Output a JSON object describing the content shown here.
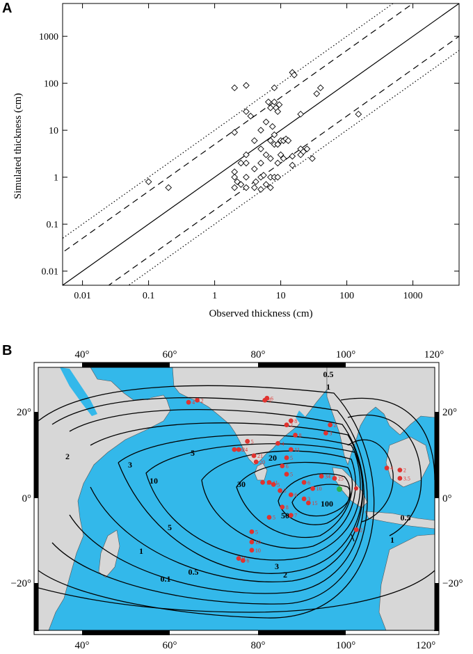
{
  "panel_a": {
    "letter": "A",
    "xlabel": "Observed thickness (cm)",
    "ylabel": "Simulated thickness (cm)",
    "x_ticks": [
      {
        "v": 0.01,
        "label": "0.01"
      },
      {
        "v": 0.1,
        "label": "0.1"
      },
      {
        "v": 1,
        "label": "1"
      },
      {
        "v": 10,
        "label": "10"
      },
      {
        "v": 100,
        "label": "100"
      },
      {
        "v": 1000,
        "label": "1000"
      }
    ],
    "y_ticks": [
      {
        "v": 0.01,
        "label": "0.01"
      },
      {
        "v": 0.1,
        "label": "0.1"
      },
      {
        "v": 1,
        "label": "1"
      },
      {
        "v": 10,
        "label": "10"
      },
      {
        "v": 100,
        "label": "100"
      },
      {
        "v": 1000,
        "label": "1000"
      }
    ]
  },
  "panel_b": {
    "letter": "B",
    "lon_labels": [
      "40°",
      "60°",
      "80°",
      "100°",
      "120°"
    ],
    "lat_labels": [
      "20°",
      "0°",
      "−20°"
    ],
    "lat_labels_right": [
      "20°",
      "0°",
      "−20°"
    ],
    "contour_labels": [
      "0.5",
      "1",
      "2",
      "3",
      "5",
      "10",
      "20",
      "30",
      "50",
      "100",
      "3",
      "2",
      "1",
      "0.5",
      "0.1",
      "5",
      "1",
      "0.5"
    ],
    "site_labels": [
      "4",
      "2",
      "5",
      "6",
      "0.1",
      "1",
      "5",
      "5",
      "4",
      "5",
      "5",
      "2",
      "3",
      "8",
      "11",
      "5",
      "4",
      "21",
      "19",
      "20",
      "18",
      "24",
      "5",
      "2",
      "3",
      "10",
      "11",
      "5",
      "6",
      "5",
      "6",
      "10",
      "5",
      "6",
      "3",
      "9",
      "10",
      "8",
      "5",
      "7",
      "15",
      "25",
      "34",
      "10",
      "15",
      "2",
      "9",
      "7",
      "8",
      "10",
      "5",
      "2",
      "4",
      "2",
      "3.5",
      "2",
      "2",
      "5",
      "10",
      "10",
      "9",
      "6",
      "6"
    ]
  },
  "chart_data": [
    {
      "type": "scatter",
      "title": "",
      "xlabel": "Observed thickness (cm)",
      "ylabel": "Simulated thickness (cm)",
      "xscale": "log",
      "yscale": "log",
      "xlim": [
        0.005,
        5000
      ],
      "ylim": [
        0.005,
        5000
      ],
      "grid": false,
      "lines": [
        {
          "style": "solid",
          "relation": "y = x"
        },
        {
          "style": "dashed",
          "relation": "y = 5x"
        },
        {
          "style": "dashed",
          "relation": "y = x/5"
        },
        {
          "style": "dotted",
          "relation": "y = 10x"
        },
        {
          "style": "dotted",
          "relation": "y = x/10"
        }
      ],
      "series": [
        {
          "marker": "open-diamond",
          "points": [
            [
              0.1,
              0.8
            ],
            [
              0.2,
              0.6
            ],
            [
              2,
              80
            ],
            [
              3,
              90
            ],
            [
              2,
              9
            ],
            [
              2,
              1.3
            ],
            [
              2,
              1
            ],
            [
              2,
              0.6
            ],
            [
              2.2,
              0.8
            ],
            [
              2.5,
              2
            ],
            [
              2.5,
              0.7
            ],
            [
              3,
              3
            ],
            [
              3,
              2
            ],
            [
              3,
              1
            ],
            [
              3,
              0.6
            ],
            [
              3,
              25
            ],
            [
              3.5,
              20
            ],
            [
              4,
              6
            ],
            [
              4,
              1.5
            ],
            [
              4,
              0.6
            ],
            [
              4.2,
              0.8
            ],
            [
              5,
              10
            ],
            [
              5,
              4
            ],
            [
              5,
              2
            ],
            [
              5,
              1
            ],
            [
              5,
              0.55
            ],
            [
              5.5,
              1.1
            ],
            [
              6,
              15
            ],
            [
              6,
              3
            ],
            [
              6,
              0.7
            ],
            [
              6.5,
              40
            ],
            [
              7,
              30
            ],
            [
              7,
              6
            ],
            [
              7,
              2.5
            ],
            [
              7,
              1
            ],
            [
              7,
              0.6
            ],
            [
              7.5,
              12
            ],
            [
              8,
              80
            ],
            [
              8,
              40
            ],
            [
              8,
              8
            ],
            [
              8,
              5
            ],
            [
              8,
              1
            ],
            [
              8.5,
              30
            ],
            [
              9,
              25
            ],
            [
              9,
              5
            ],
            [
              9,
              2
            ],
            [
              9,
              1
            ],
            [
              9.5,
              35
            ],
            [
              10,
              3
            ],
            [
              10,
              6
            ],
            [
              11,
              6
            ],
            [
              11,
              2.5
            ],
            [
              12,
              6.5
            ],
            [
              13,
              6
            ],
            [
              15,
              170
            ],
            [
              15,
              2.8
            ],
            [
              15,
              1.8
            ],
            [
              16,
              150
            ],
            [
              20,
              22
            ],
            [
              20,
              3
            ],
            [
              20,
              4
            ],
            [
              22,
              3.5
            ],
            [
              25,
              4
            ],
            [
              30,
              2.5
            ],
            [
              35,
              60
            ],
            [
              40,
              80
            ],
            [
              150,
              22
            ]
          ]
        }
      ]
    },
    {
      "type": "map",
      "title": "",
      "lon_range": [
        30,
        121
      ],
      "lat_range": [
        -31,
        33
      ],
      "contour_levels": [
        0.1,
        0.5,
        1,
        2,
        3,
        5,
        10,
        20,
        30,
        50,
        100
      ],
      "sites": [
        {
          "lon": 64.5,
          "lat": 24.5,
          "label": "4"
        },
        {
          "lon": 66.5,
          "lat": 25,
          "label": "2"
        },
        {
          "lon": 82,
          "lat": 25,
          "label": "5"
        },
        {
          "lon": 82.5,
          "lat": 25.5,
          "label": "6"
        },
        {
          "lon": 97,
          "lat": 19,
          "label": "2"
        },
        {
          "lon": 96,
          "lat": 17,
          "label": "3"
        },
        {
          "lon": 88,
          "lat": 20,
          "label": "8"
        },
        {
          "lon": 87,
          "lat": 19,
          "label": "2"
        },
        {
          "lon": 89,
          "lat": 16.5,
          "label": "8"
        },
        {
          "lon": 85,
          "lat": 14.5,
          "label": "4"
        },
        {
          "lon": 88,
          "lat": 13,
          "label": "11"
        },
        {
          "lon": 87,
          "lat": 11,
          "label": "5"
        },
        {
          "lon": 78,
          "lat": 15,
          "label": "5"
        },
        {
          "lon": 75,
          "lat": 13,
          "label": "18"
        },
        {
          "lon": 76,
          "lat": 13,
          "label": "24"
        },
        {
          "lon": 79.5,
          "lat": 11.5,
          "label": "21"
        },
        {
          "lon": 80,
          "lat": 10,
          "label": "20"
        },
        {
          "lon": 81.5,
          "lat": 5,
          "label": "10"
        },
        {
          "lon": 83,
          "lat": 5,
          "label": "11"
        },
        {
          "lon": 84,
          "lat": 4.5,
          "label": "5"
        },
        {
          "lon": 86,
          "lat": 9,
          "label": "6"
        },
        {
          "lon": 87,
          "lat": 7,
          "label": "5"
        },
        {
          "lon": 91,
          "lat": 5,
          "label": "6"
        },
        {
          "lon": 93,
          "lat": 3.5,
          "label": "10"
        },
        {
          "lon": 85.5,
          "lat": 3,
          "label": "5"
        },
        {
          "lon": 88,
          "lat": 2,
          "label": "6"
        },
        {
          "lon": 91,
          "lat": 1,
          "label": "3"
        },
        {
          "lon": 92,
          "lat": 0,
          "label": "15"
        },
        {
          "lon": 86,
          "lat": -1,
          "label": "8"
        },
        {
          "lon": 88,
          "lat": -3,
          "label": "7"
        },
        {
          "lon": 83,
          "lat": -3.5,
          "label": "5"
        },
        {
          "lon": 95,
          "lat": 6.5,
          "label": "34"
        },
        {
          "lon": 98,
          "lat": 6,
          "label": "25"
        },
        {
          "lon": 103,
          "lat": -6.5,
          "label": "2"
        },
        {
          "lon": 110,
          "lat": 8.5,
          "label": "4"
        },
        {
          "lon": 113,
          "lat": 8,
          "label": "2"
        },
        {
          "lon": 113,
          "lat": 6,
          "label": "3.5"
        },
        {
          "lon": 79,
          "lat": -7,
          "label": "5"
        },
        {
          "lon": 79,
          "lat": -9.5,
          "label": "10"
        },
        {
          "lon": 79,
          "lat": -11.5,
          "label": "10"
        },
        {
          "lon": 76,
          "lat": -13.5,
          "label": "9"
        },
        {
          "lon": 77,
          "lat": -14,
          "label": "6"
        }
      ]
    }
  ]
}
